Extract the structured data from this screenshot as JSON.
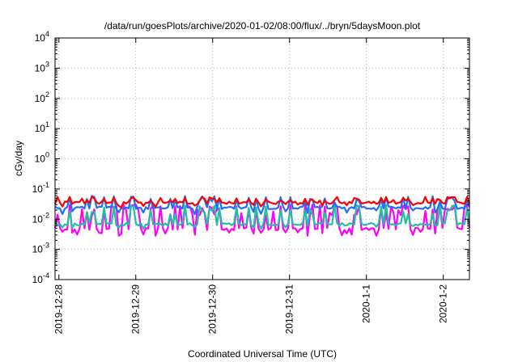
{
  "chart_data": {
    "type": "line",
    "title": "/data/run/goesPlots/archive/2020-01-02/08:00/flux/../bryn/5daysMoon.plot",
    "xlabel": "Coordinated Universal Time (UTC)",
    "ylabel": "cGy/day",
    "yscale": "log",
    "ylim": [
      0.0001,
      10000
    ],
    "xlim": [
      -0.05,
      5.34
    ],
    "grid": true,
    "y_ticks": [
      {
        "base": "10",
        "exp": "-4"
      },
      {
        "base": "10",
        "exp": "-3"
      },
      {
        "base": "10",
        "exp": "-2"
      },
      {
        "base": "10",
        "exp": "-1"
      },
      {
        "base": "10",
        "exp": "0"
      },
      {
        "base": "10",
        "exp": "1"
      },
      {
        "base": "10",
        "exp": "2"
      },
      {
        "base": "10",
        "exp": "3"
      },
      {
        "base": "10",
        "exp": "4"
      }
    ],
    "x_ticks": [
      "2019-12-28",
      "2019-12-29",
      "2019-12-30",
      "2019-12-31",
      "2020-1-1",
      "2020-1-2"
    ],
    "x_tick_days": [
      0,
      1,
      2,
      3,
      4,
      5
    ],
    "series": [
      {
        "color": "#ff0000",
        "base": 0.035,
        "spike": 0.055,
        "spike_prob": 0.35,
        "dip": 0.03
      },
      {
        "color": "#1f6fff",
        "base": 0.024,
        "spike": 0.06,
        "spike_prob": 0.3,
        "dip": 0.018
      },
      {
        "color": "#20c0a0",
        "base": 0.0068,
        "spike": 0.03,
        "spike_prob": 0.3,
        "dip": 0.006
      },
      {
        "color": "#ff00ff",
        "base": 0.0048,
        "spike": 0.03,
        "spike_prob": 0.45,
        "dip": 0.0035
      }
    ]
  }
}
